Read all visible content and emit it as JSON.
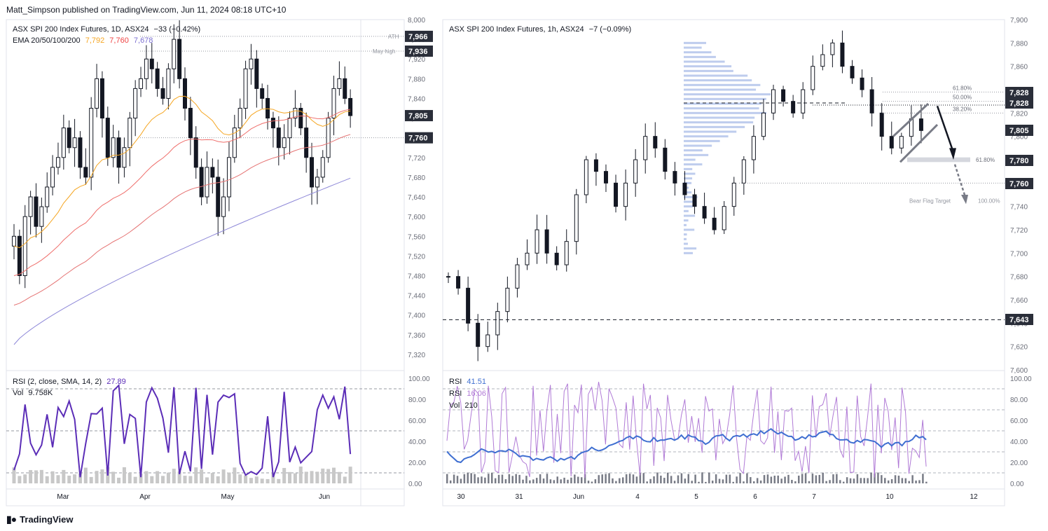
{
  "publisher": "Matt_Simpson published on TradingView.com, Jun 11, 2024 08:18 UTC+10",
  "footer_brand": "TradingView",
  "colors": {
    "ema20": "#f5a623",
    "ema50": "#ef6f6c",
    "ema100": "#e57373",
    "ema200": "#8e88d8",
    "rsi_main": "#5b2db7",
    "rsi_fast": "#b07ad6",
    "rsi_slow": "#3f6fd1",
    "candle": "#131722",
    "volume": "#c8c8c8",
    "volprofile": "#aebfe8",
    "label_bg": "#2a2e39",
    "label_text": "#ffffff",
    "arrow": "#131722"
  },
  "left_panel": {
    "title": "ASX SPI 200 Index Futures, 1D, ASX24",
    "change": "−33 (−0.42%)",
    "ema_label": "EMA 20/50/100/200",
    "ema_values": [
      "7,792",
      "7,760",
      "7,678"
    ],
    "rsi_label": "RSI (2, close, SMA, 14, 2)",
    "rsi_value": "27.89",
    "vol_label": "Vol",
    "vol_value": "9.758K",
    "ath_label": "ATH",
    "may_high_label": "May high",
    "price_tags": [
      "7,966",
      "7,936",
      "7,805",
      "7,760"
    ],
    "y_ticks": [
      "8,000",
      "7,960",
      "7,920",
      "7,880",
      "7,840",
      "7,800",
      "7,760",
      "7,720",
      "7,680",
      "7,640",
      "7,600",
      "7,560",
      "7,520",
      "7,480",
      "7,440",
      "7,400",
      "7,360",
      "7,320"
    ],
    "rsi_ticks": [
      "100.00",
      "80.00",
      "60.00",
      "40.00",
      "20.00",
      "0.00"
    ],
    "x_ticks": [
      "Mar",
      "Apr",
      "May",
      "Jun"
    ]
  },
  "right_panel": {
    "title": "ASX SPI 200 Index Futures, 1h, ASX24",
    "change": "−7 (−0.09%)",
    "rsi1_label": "RSI",
    "rsi1_value": "41.51",
    "rsi2_label": "RSI",
    "rsi2_value": "16.06",
    "vol_label": "Vol",
    "vol_value": "210",
    "fib_labels": [
      "61.80%",
      "50.00%",
      "38.20%",
      "61.80%",
      "100.00%"
    ],
    "bear_flag_label": "Bear Flag Target",
    "price_tags": [
      "7,828",
      "7,828",
      "7,805",
      "7,780",
      "7,760",
      "7,643"
    ],
    "y_ticks": [
      "7,900",
      "7,880",
      "7,860",
      "7,840",
      "7,820",
      "7,800",
      "7,780",
      "7,760",
      "7,740",
      "7,720",
      "7,700",
      "7,680",
      "7,660",
      "7,640",
      "7,620",
      "7,600"
    ],
    "rsi_ticks": [
      "100.00",
      "80.00",
      "60.00",
      "40.00",
      "20.00",
      "0.00"
    ],
    "x_ticks": [
      "30",
      "31",
      "Jun",
      "4",
      "5",
      "6",
      "7",
      "10",
      "12"
    ]
  },
  "chart_data": [
    {
      "type": "candlestick",
      "title": "ASX SPI 200 Index Futures, 1D, ASX24",
      "ylim": [
        7300,
        8000
      ],
      "x_categories": [
        "Mar",
        "Apr",
        "May",
        "Jun"
      ],
      "close_series": [
        7560,
        7480,
        7600,
        7640,
        7580,
        7620,
        7660,
        7700,
        7720,
        7780,
        7740,
        7760,
        7700,
        7680,
        7820,
        7880,
        7800,
        7720,
        7760,
        7700,
        7740,
        7800,
        7860,
        7880,
        7920,
        7900,
        7860,
        7840,
        7900,
        7960,
        7880,
        7820,
        7760,
        7700,
        7640,
        7700,
        7680,
        7600,
        7640,
        7720,
        7780,
        7820,
        7900,
        7920,
        7860,
        7840,
        7800,
        7780,
        7740,
        7760,
        7800,
        7820,
        7780,
        7720,
        7660,
        7680,
        7720,
        7800,
        7860,
        7880,
        7840,
        7805
      ],
      "key_levels": {
        "ATH": 7966,
        "May high": 7936,
        "EMA50": 7760
      },
      "ema": {
        "20": 7792,
        "50": 7760,
        "200": 7678
      },
      "rsi": {
        "period": 2,
        "last": 27.89
      }
    },
    {
      "type": "candlestick",
      "title": "ASX SPI 200 Index Futures, 1h, ASX24",
      "ylim": [
        7600,
        7900
      ],
      "x_categories": [
        "30",
        "31",
        "Jun",
        "4",
        "5",
        "6",
        "7",
        "10",
        "12"
      ],
      "close_series": [
        7680,
        7670,
        7640,
        7620,
        7630,
        7650,
        7670,
        7690,
        7700,
        7720,
        7700,
        7690,
        7710,
        7750,
        7780,
        7770,
        7760,
        7740,
        7760,
        7780,
        7800,
        7790,
        7770,
        7760,
        7750,
        7740,
        7730,
        7720,
        7740,
        7760,
        7780,
        7800,
        7820,
        7840,
        7830,
        7820,
        7840,
        7860,
        7870,
        7880,
        7860,
        7850,
        7840,
        7820,
        7800,
        7790,
        7800,
        7815,
        7805
      ],
      "key_levels": {
        "7828": 7828,
        "7805": 7805,
        "7780": 7780,
        "7760": 7760,
        "7643": 7643
      },
      "fibonacci": [
        {
          "label": "61.80%",
          "value": 7838
        },
        {
          "label": "50.00%",
          "value": 7830
        },
        {
          "label": "38.20%",
          "value": 7820
        }
      ],
      "projection": {
        "label": "Bear Flag Target",
        "level_label": "100.00%",
        "target": 7745
      },
      "rsi": [
        {
          "name": "RSI",
          "last": 41.51
        },
        {
          "name": "RSI",
          "last": 16.06
        }
      ],
      "volume_last": 210
    }
  ]
}
